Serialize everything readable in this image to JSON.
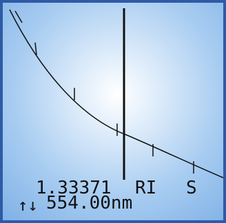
{
  "colors": {
    "frame": "#2f5aa6",
    "curve": "#111111",
    "cursor": "#111111"
  },
  "readout": {
    "ri_value": "1.33371",
    "ri_unit": "RI",
    "mode": "S",
    "arrows_icon_text": "↑↓",
    "wavelength": "554.00nm"
  }
}
